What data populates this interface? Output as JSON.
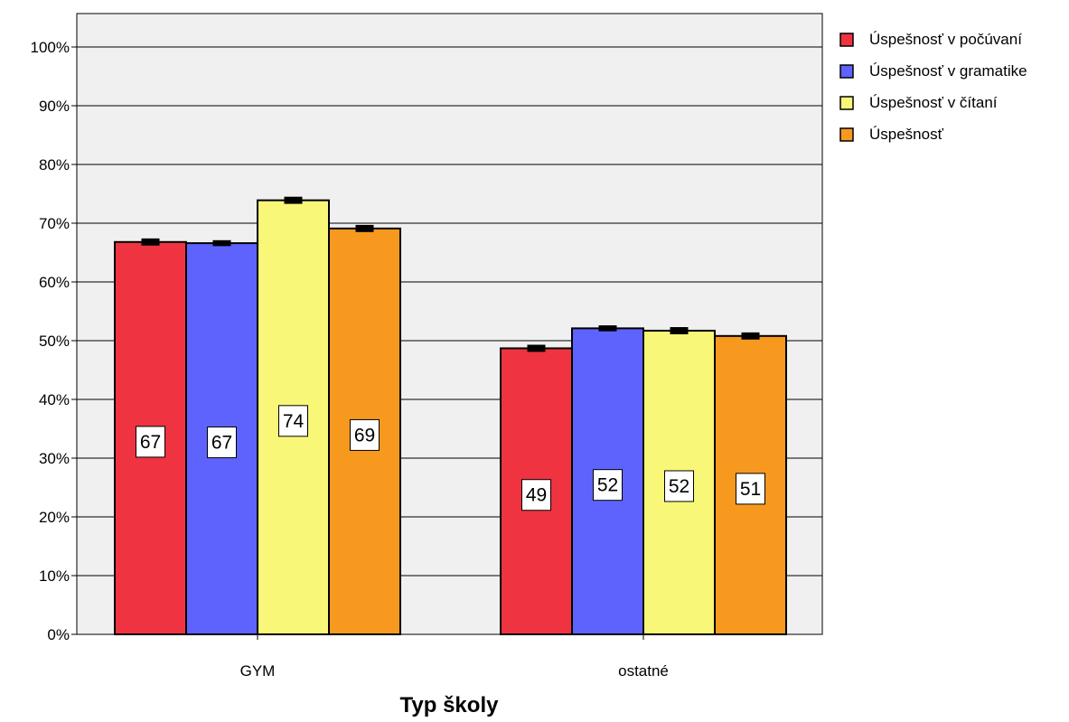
{
  "chart_data": {
    "type": "bar",
    "categories": [
      "GYM",
      "ostatné"
    ],
    "series": [
      {
        "name": "Úspešnosť v počúvaní",
        "values": [
          67,
          49
        ],
        "color": "#ef3340",
        "error": [
          0.3,
          0.3
        ]
      },
      {
        "name": "Úspešnosť v gramatike",
        "values": [
          67,
          52
        ],
        "color": "#5f63fd",
        "error": [
          0.2,
          0.2
        ]
      },
      {
        "name": "Úspešnosť v čítaní",
        "values": [
          74,
          52
        ],
        "color": "#f8f778",
        "error": [
          0.3,
          0.3
        ]
      },
      {
        "name": "Úspešnosť",
        "values": [
          69,
          51
        ],
        "color": "#f7991f",
        "error": [
          0.3,
          0.3
        ]
      }
    ],
    "bar_tops": [
      [
        66.8,
        48.7
      ],
      [
        66.6,
        52.1
      ],
      [
        73.9,
        51.7
      ],
      [
        69.1,
        50.8
      ]
    ],
    "data_labels": [
      [
        "67",
        "49"
      ],
      [
        "67",
        "52"
      ],
      [
        "74",
        "52"
      ],
      [
        "69",
        "51"
      ]
    ],
    "ytick_labels": [
      "0%",
      "10%",
      "20%",
      "30%",
      "40%",
      "50%",
      "60%",
      "70%",
      "80%",
      "90%",
      "100%"
    ],
    "ylim": [
      0,
      100
    ],
    "xlabel": "Typ školy",
    "ylabel": "",
    "grid": true,
    "legend_position": "top-right",
    "plot_background": "#f0f0f0"
  }
}
